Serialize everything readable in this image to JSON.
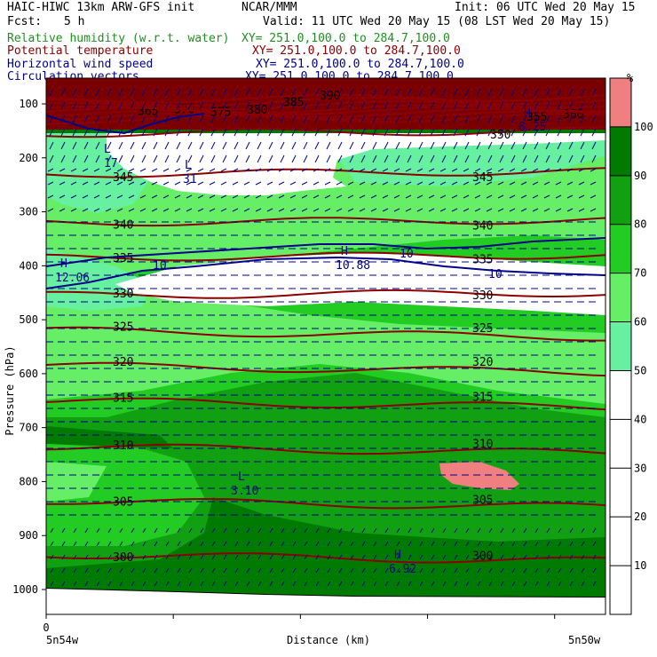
{
  "header": {
    "model": "HAIC-HIWC 13km ARW-GFS init",
    "org": "NCAR/MMM",
    "init": "Init: 06 UTC Wed 20 May 15",
    "fcst_label": "Fcst:",
    "fcst_value": "5 h",
    "valid": "Valid: 11 UTC Wed 20 May 15 (08 LST Wed 20 May 15)",
    "fields": [
      {
        "name": "Relative humidity (w.r.t. water)",
        "xy": "XY= 251.0,100.0 to 284.7,100.0",
        "color": "#1f8f1f"
      },
      {
        "name": "Potential temperature",
        "xy": "XY= 251.0,100.0 to 284.7,100.0",
        "color": "#8b0000"
      },
      {
        "name": "Horizontal wind speed",
        "xy": "XY= 251.0,100.0 to 284.7,100.0",
        "color": "#00008b"
      },
      {
        "name": "Circulation vectors",
        "xy": "XY= 251.0,100.0 to 284.7,100.0",
        "color": "#00008b"
      }
    ]
  },
  "chart_data": {
    "type": "heatmap",
    "description_fields": [
      "relative humidity shading",
      "potential temperature contours",
      "wind speed contours",
      "circulation vectors"
    ],
    "ylabel": "Pressure (hPa)",
    "xlabel": "Distance (km)",
    "x_start_label": "0",
    "x_left_endpoint": "5n54w",
    "x_right_endpoint": "5n50w",
    "y_ticks": [
      100,
      200,
      300,
      400,
      500,
      600,
      700,
      800,
      900,
      1000
    ],
    "ylim": [
      1000,
      50
    ],
    "colorbar": {
      "unit": "%",
      "levels": [
        10,
        20,
        30,
        40,
        50,
        60,
        70,
        80,
        90,
        100
      ],
      "colors": [
        "#ffffff",
        "#ffffff",
        "#ffffff",
        "#ffffff",
        "#ffffff",
        "#66f0a0",
        "#66ee66",
        "#22cc22",
        "#11a011",
        "#007a00",
        "#f08080"
      ]
    },
    "theta_contours": [
      {
        "label": "300",
        "p": 935
      },
      {
        "label": "305",
        "p": 835
      },
      {
        "label": "310",
        "p": 735
      },
      {
        "label": "315",
        "p": 650
      },
      {
        "label": "320",
        "p": 585
      },
      {
        "label": "325",
        "p": 520
      },
      {
        "label": "330",
        "p": 455
      },
      {
        "label": "335",
        "p": 385
      },
      {
        "label": "340",
        "p": 320
      },
      {
        "label": "345",
        "p": 230
      },
      {
        "label": "350",
        "p": 155
      },
      {
        "label": "355",
        "p": 130
      },
      {
        "label": "360",
        "p": 125
      },
      {
        "label": "365",
        "p": 120
      },
      {
        "label": "370",
        "p": 115
      },
      {
        "label": "375",
        "p": 112
      },
      {
        "label": "380",
        "p": 105
      },
      {
        "label": "385",
        "p": 98
      },
      {
        "label": "390",
        "p": 92
      }
    ],
    "labels_in_plot": [
      {
        "text": "L",
        "sub": "17"
      },
      {
        "text": "L",
        "sub": "31"
      },
      {
        "text": "H",
        "sub": "12.06"
      },
      {
        "text": "H",
        "sub": "10.88"
      },
      {
        "text": "L",
        "sub": "3.10"
      },
      {
        "text": "H",
        "sub": "6.92"
      },
      {
        "text": "H",
        "sub": "8.25"
      },
      {
        "text": "10",
        "sub": ""
      }
    ]
  }
}
